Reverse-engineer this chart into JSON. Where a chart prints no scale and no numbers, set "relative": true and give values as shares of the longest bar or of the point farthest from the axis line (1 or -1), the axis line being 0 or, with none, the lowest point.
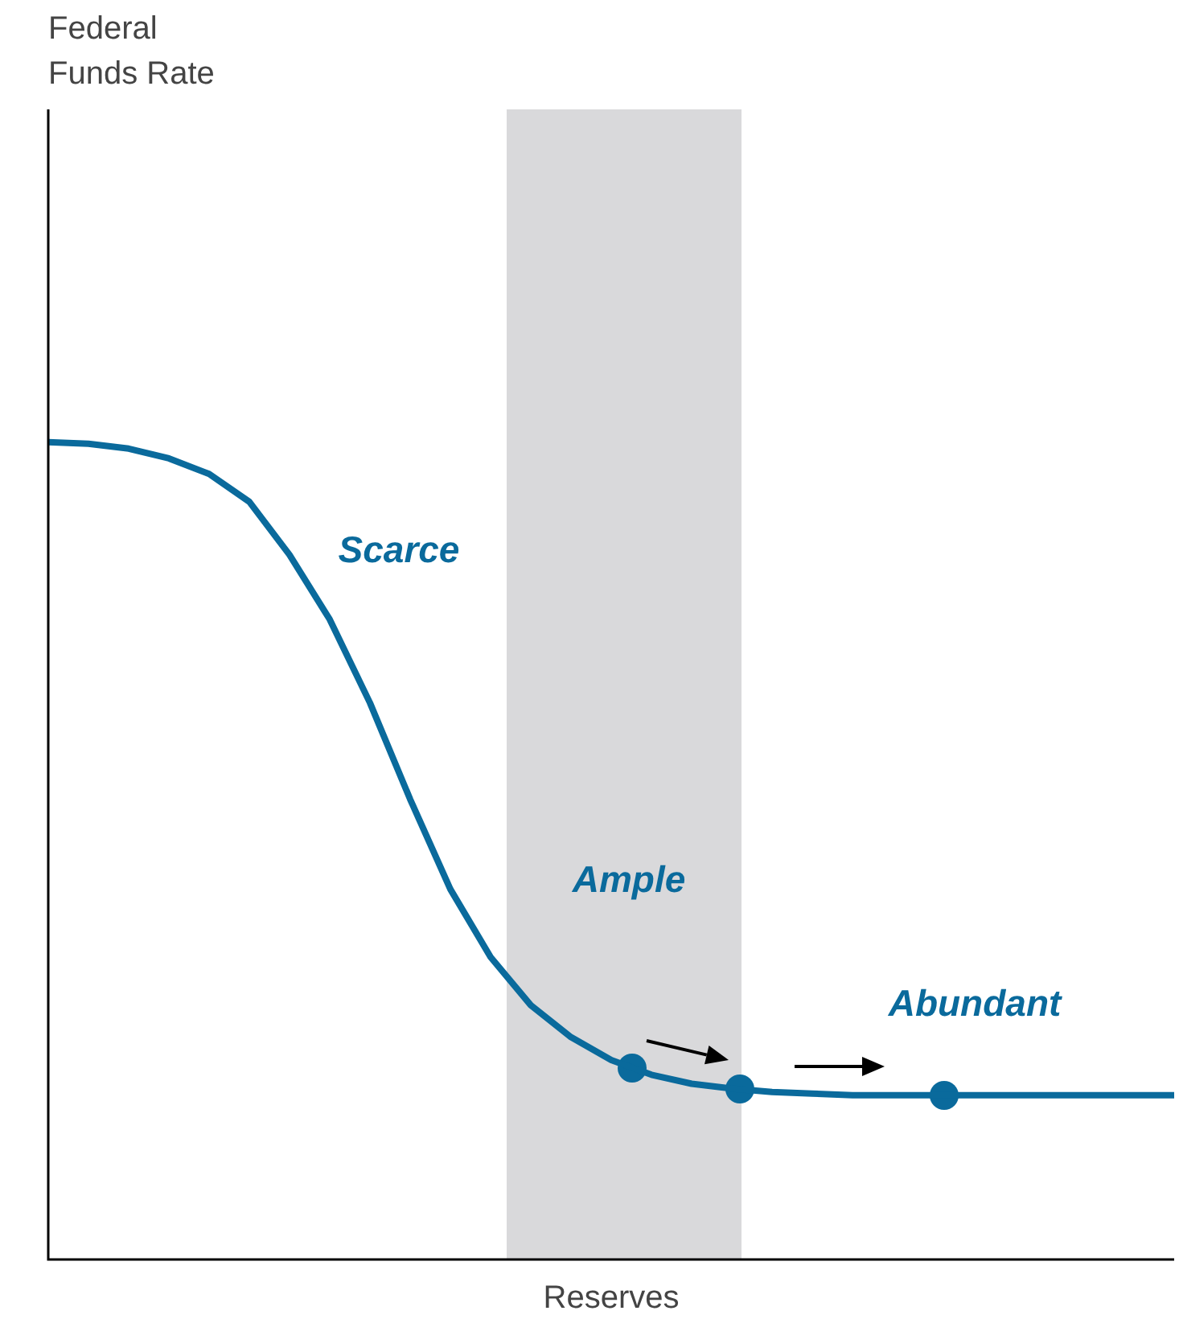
{
  "chart_data": {
    "type": "line",
    "relative": true,
    "xlabel": "Reserves",
    "legend": false,
    "categories": [
      null,
      null,
      null,
      null,
      null,
      null,
      null,
      null,
      null,
      null,
      null,
      null,
      null,
      null,
      null,
      null,
      null,
      null,
      null,
      null,
      null,
      null,
      null,
      null,
      null,
      null,
      null,
      null,
      null
    ],
    "series": [
      {
        "color": "#0a6a9c",
        "values": [
          1,
          0.998,
          0.992,
          0.98,
          0.961,
          0.927,
          0.862,
          0.783,
          0.681,
          0.563,
          0.453,
          0.37,
          0.311,
          0.272,
          0.244,
          0.226,
          0.215,
          0.209,
          0.205,
          0.203,
          0.201,
          0.201,
          0.201,
          0.201,
          0.201,
          0.201,
          0.201,
          0.201,
          0.201
        ]
      }
    ],
    "annotations": [
      "Federal\nFunds Rate",
      "Scarce",
      "Ample",
      "Abundant"
    ]
  }
}
